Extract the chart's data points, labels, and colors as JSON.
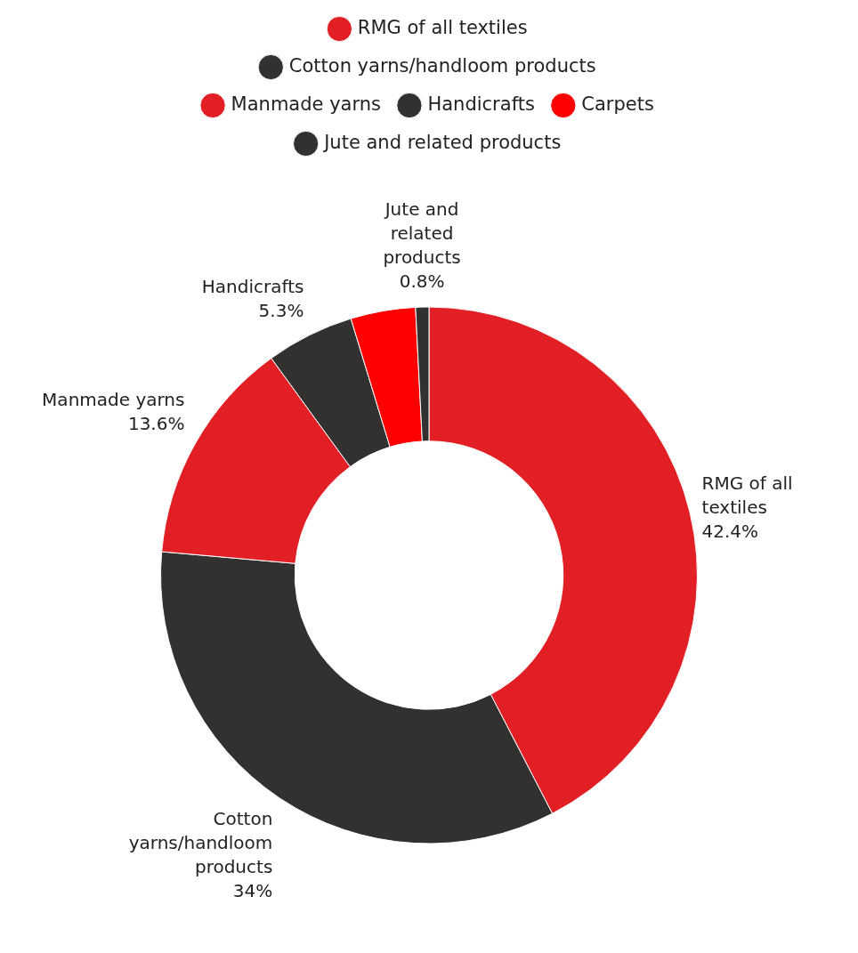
{
  "chart_data": {
    "type": "donut",
    "categories": [
      "RMG of all textiles",
      "Cotton yarns/handloom products",
      "Manmade yarns",
      "Handicrafts",
      "Carpets",
      "Jute and related products"
    ],
    "values": [
      42.4,
      34,
      13.6,
      5.3,
      3.9,
      0.8
    ],
    "colors": [
      "#e31f26",
      "#333130",
      "#e31f26",
      "#333130",
      "#ff0000",
      "#333130"
    ],
    "value_labels": [
      "42.4%",
      "34%",
      "13.6%",
      "5.3%",
      null,
      "0.8%"
    ],
    "legend": "top"
  }
}
